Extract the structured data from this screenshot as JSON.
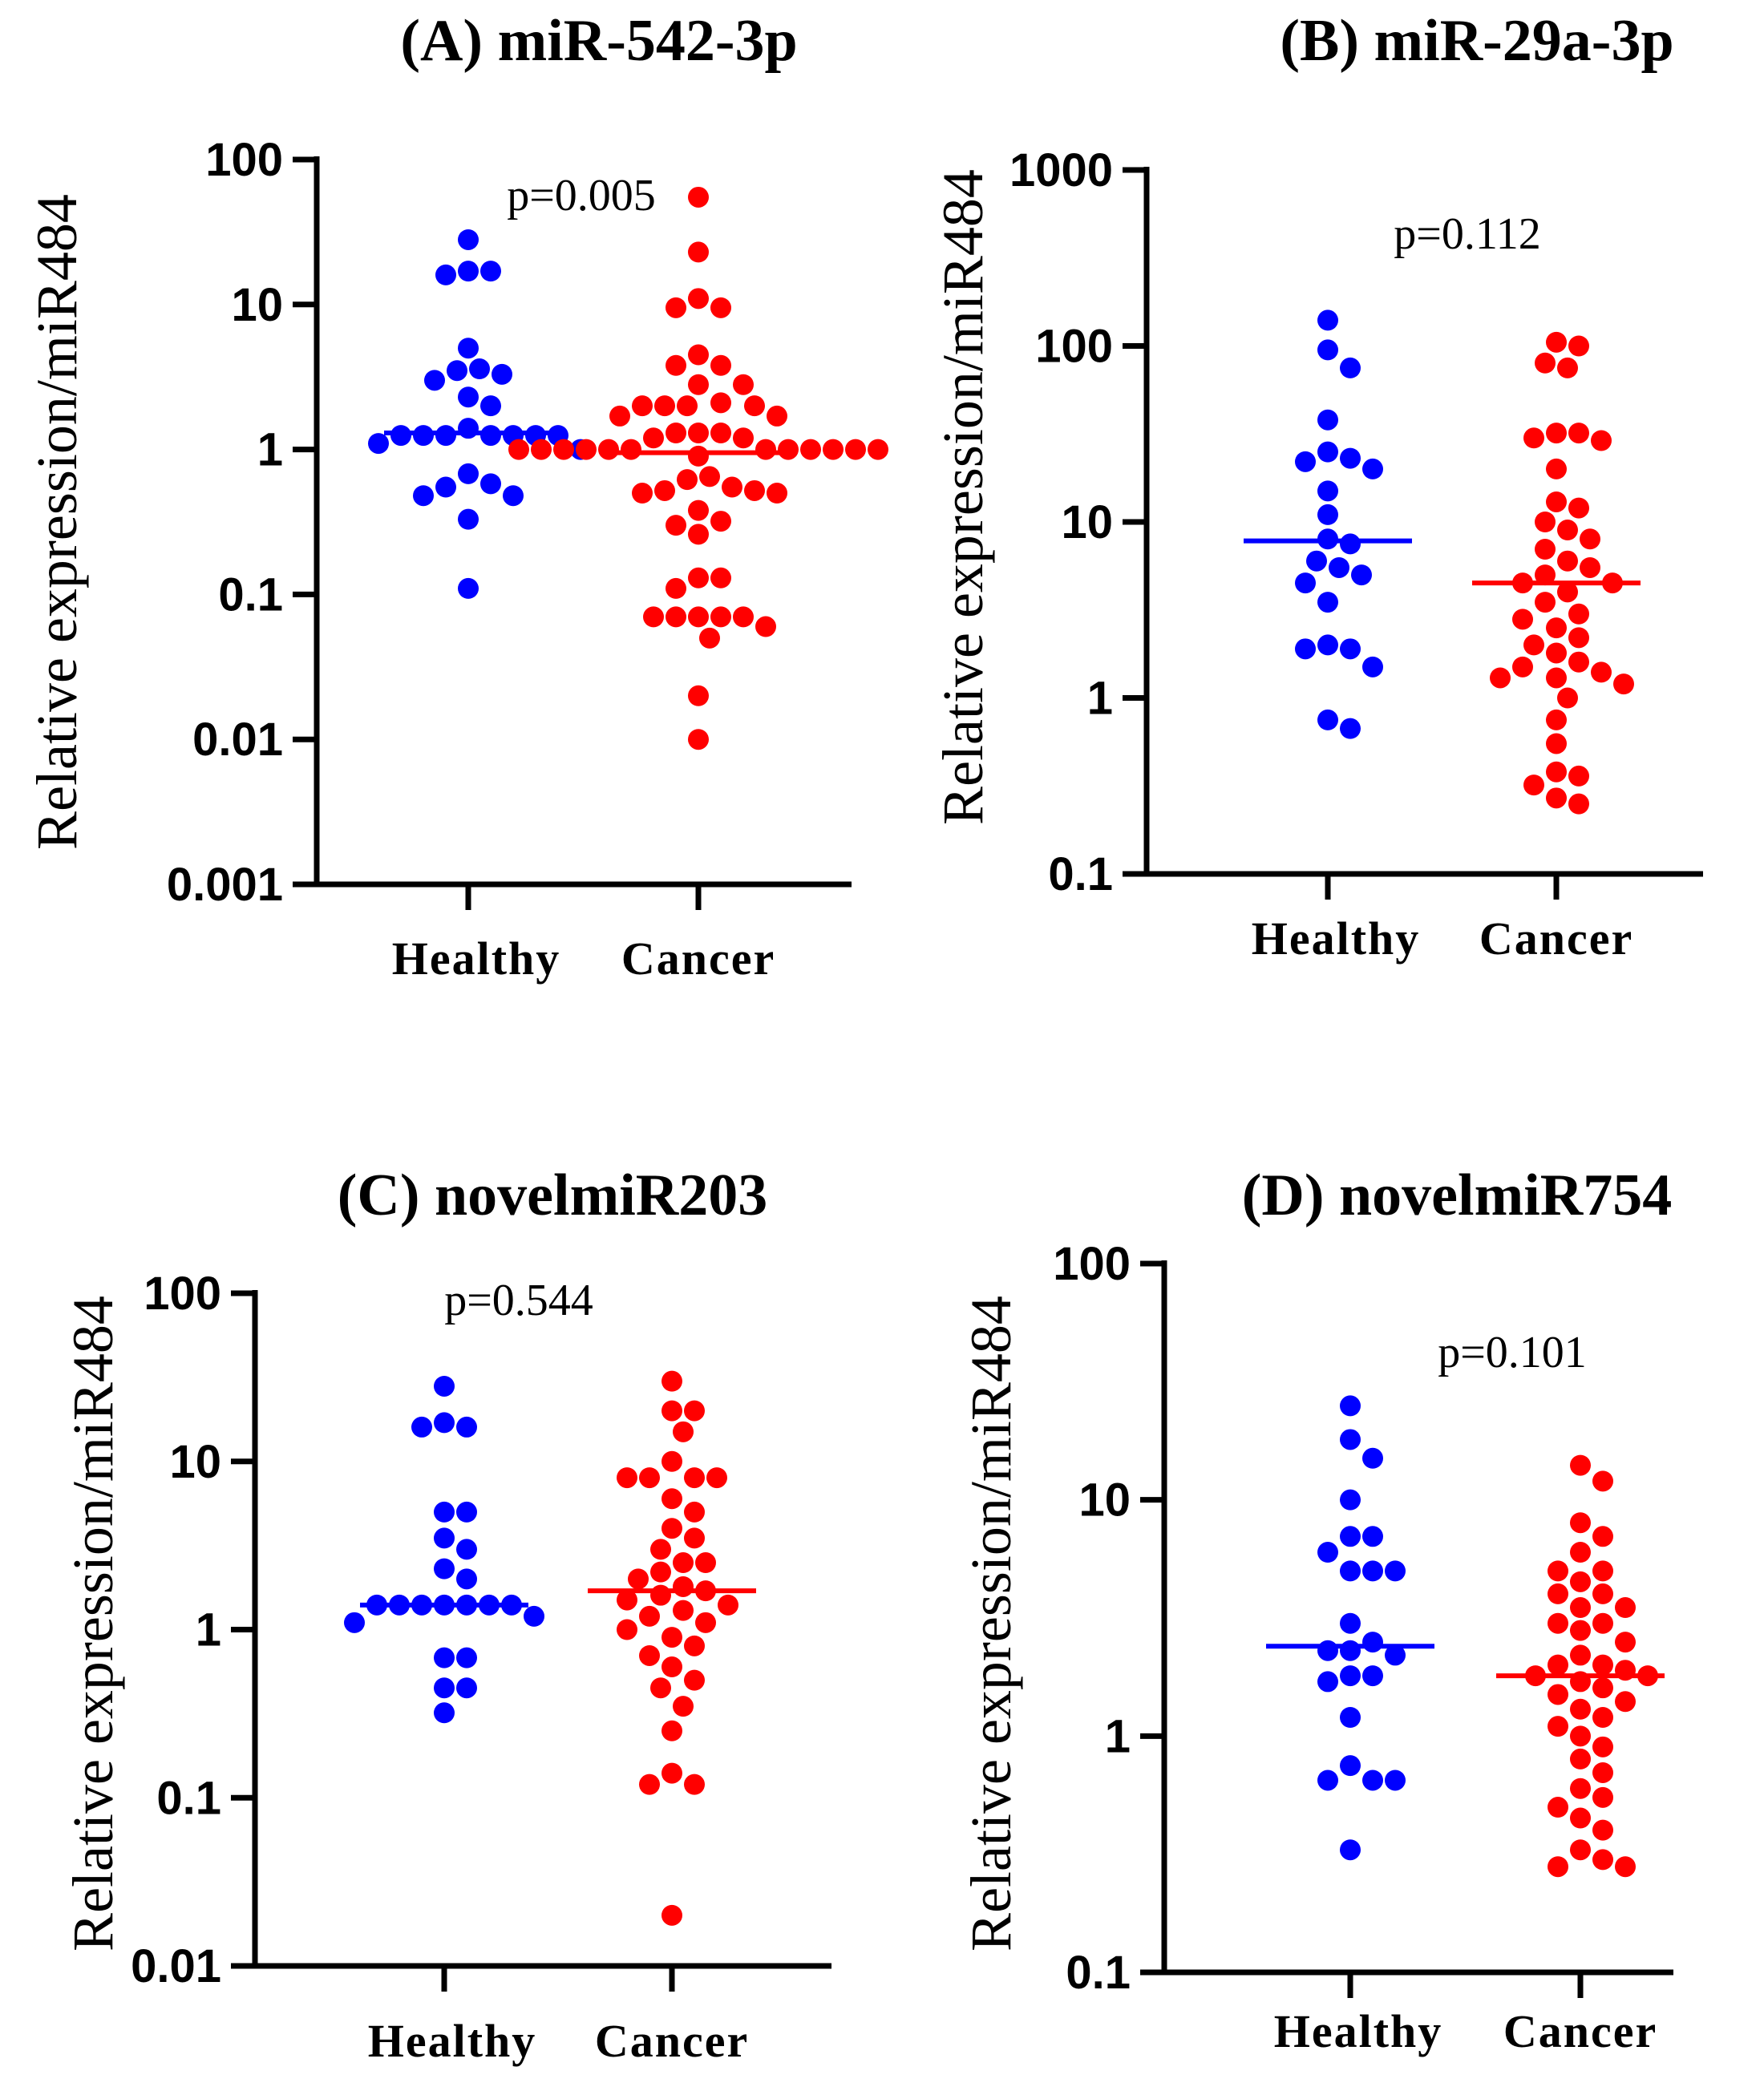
{
  "colors": {
    "healthy": "#0000ff",
    "cancer": "#ff0000",
    "axis": "#000000"
  },
  "chart_data": [
    {
      "type": "scatter",
      "title": "(A) miR-542-3p",
      "ylabel": "Relative expression/miR484",
      "yscale": "log",
      "ylim": [
        0.001,
        100
      ],
      "yticks": [
        "0.001",
        "0.01",
        "0.1",
        "1",
        "10",
        "100"
      ],
      "ytick_values": [
        0.001,
        0.01,
        0.1,
        1,
        10,
        100
      ],
      "categories": [
        "Healthy",
        "Cancer"
      ],
      "annotation": "p=0.005",
      "series": [
        {
          "name": "Healthy",
          "median": 1.3,
          "values": [
            28,
            17,
            16,
            17,
            5,
            3.5,
            3.6,
            3.3,
            3,
            2.3,
            2,
            1.25,
            1.25,
            1.25,
            1.25,
            1.25,
            1.25,
            1.25,
            1.4,
            1.1,
            1.0,
            0.68,
            0.58,
            0.55,
            0.48,
            0.48,
            0.33,
            0.11
          ]
        },
        {
          "name": "Cancer",
          "median": 0.95,
          "values": [
            55,
            23,
            11,
            9.5,
            9.5,
            4.5,
            3.8,
            3.8,
            2.8,
            2.8,
            2.1,
            2,
            2,
            2,
            2,
            1.7,
            1.7,
            1.3,
            1.3,
            1.3,
            1.2,
            1.2,
            1,
            1,
            1,
            1,
            1,
            1,
            1,
            1,
            1,
            1,
            1,
            1,
            0.9,
            0.65,
            0.62,
            0.55,
            0.52,
            0.52,
            0.5,
            0.5,
            0.38,
            0.32,
            0.3,
            0.26,
            0.13,
            0.13,
            0.11,
            0.07,
            0.07,
            0.07,
            0.07,
            0.07,
            0.06,
            0.05,
            0.02,
            0.01
          ]
        }
      ]
    },
    {
      "type": "scatter",
      "title": "(B) miR-29a-3p",
      "ylabel": "Relative expression/miR484",
      "yscale": "log",
      "ylim": [
        0.1,
        1000
      ],
      "yticks": [
        "0.1",
        "1",
        "10",
        "100",
        "1000"
      ],
      "ytick_values": [
        0.1,
        1,
        10,
        100,
        1000
      ],
      "categories": [
        "Healthy",
        "Cancer"
      ],
      "annotation": "p=0.112",
      "series": [
        {
          "name": "Healthy",
          "median": 7.8,
          "values": [
            140,
            95,
            75,
            38,
            25,
            23,
            22,
            20,
            15,
            11,
            8,
            7.5,
            6,
            5.5,
            5,
            4.5,
            3.5,
            2,
            1.9,
            1.9,
            1.5,
            0.75,
            0.67
          ]
        },
        {
          "name": "Cancer",
          "median": 4.5,
          "values": [
            105,
            100,
            80,
            75,
            32,
            30,
            29,
            32,
            20,
            13,
            12,
            10,
            9,
            8,
            7,
            6,
            5.5,
            5,
            4.5,
            4.5,
            4,
            3.5,
            3,
            2.8,
            2.5,
            2.2,
            2,
            1.8,
            1.6,
            1.5,
            1.4,
            1.3,
            1.3,
            1.2,
            1,
            0.75,
            0.55,
            0.38,
            0.36,
            0.32,
            0.27,
            0.25
          ]
        }
      ]
    },
    {
      "type": "scatter",
      "title": "(C) novelmiR203",
      "ylabel": "Relative expression/miR484",
      "yscale": "log",
      "ylim": [
        0.01,
        100
      ],
      "yticks": [
        "0.01",
        "0.1",
        "1",
        "10",
        "100"
      ],
      "ytick_values": [
        0.01,
        0.1,
        1,
        10,
        100
      ],
      "categories": [
        "Healthy",
        "Cancer"
      ],
      "annotation": "p=0.544",
      "series": [
        {
          "name": "Healthy",
          "median": 1.4,
          "values": [
            28,
            17,
            16,
            16,
            5,
            5,
            3.5,
            3,
            2.3,
            2,
            1.4,
            1.4,
            1.4,
            1.4,
            1.4,
            1.4,
            1.4,
            1.2,
            1.1,
            0.68,
            0.68,
            0.45,
            0.45,
            0.32
          ]
        },
        {
          "name": "Cancer",
          "median": 1.7,
          "values": [
            30,
            20,
            20,
            15,
            10,
            8,
            8,
            8,
            8,
            6,
            5,
            4,
            3.5,
            3,
            2.5,
            2.5,
            2.2,
            2,
            1.8,
            1.7,
            1.6,
            1.5,
            1.4,
            1.3,
            1.2,
            1.1,
            1,
            0.9,
            0.8,
            0.7,
            0.6,
            0.5,
            0.45,
            0.35,
            0.25,
            0.14,
            0.12,
            0.12,
            0.02
          ]
        }
      ]
    },
    {
      "type": "scatter",
      "title": "(D) novelmiR754",
      "ylabel": "Relative expression/miR484",
      "yscale": "log",
      "ylim": [
        0.1,
        100
      ],
      "yticks": [
        "0.1",
        "1",
        "10",
        "100"
      ],
      "ytick_values": [
        0.1,
        1,
        10,
        100
      ],
      "categories": [
        "Healthy",
        "Cancer"
      ],
      "annotation": "p=0.101",
      "series": [
        {
          "name": "Healthy",
          "median": 2.4,
          "values": [
            25,
            18,
            15,
            10,
            7,
            7,
            6,
            5,
            5,
            5,
            3,
            2.5,
            2.3,
            2.3,
            2.2,
            1.8,
            1.8,
            1.7,
            1.2,
            0.75,
            0.65,
            0.65,
            0.65,
            0.33
          ]
        },
        {
          "name": "Cancer",
          "median": 1.8,
          "values": [
            14,
            12,
            8,
            7,
            6,
            5,
            5,
            4.5,
            4,
            4,
            3.5,
            3.5,
            3,
            3,
            2.8,
            2.5,
            2.2,
            2,
            2,
            1.9,
            1.8,
            1.8,
            1.7,
            1.6,
            1.5,
            1.4,
            1.3,
            1.2,
            1.1,
            1,
            0.9,
            0.8,
            0.7,
            0.6,
            0.55,
            0.5,
            0.45,
            0.4,
            0.33,
            0.3,
            0.28,
            0.28
          ]
        }
      ]
    }
  ]
}
